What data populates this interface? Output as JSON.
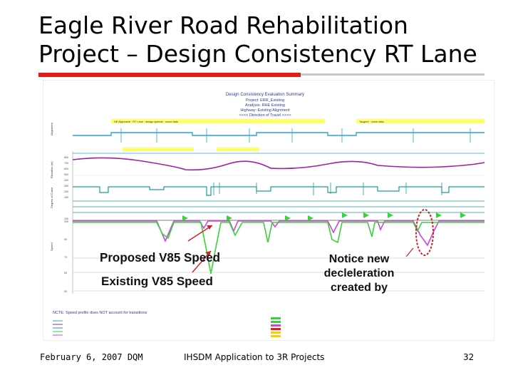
{
  "slide": {
    "title": "Eagle River Road Rehabilitation\nProject – Design Consistency RT Lane",
    "footer_left": "February 6, 2007 DQM",
    "footer_center": "IHSDM Application to 3R Projects",
    "page_number": "32"
  },
  "chart_header": {
    "line1": "Design Consistency Evaluation Summary",
    "line2": "Project: ERR_Existing",
    "line3": "Analysis: RHE Existing",
    "line4": "Highway: Existing Alignment",
    "line5": "<<<< Direction of Travel >>>>"
  },
  "annotations": {
    "proposed": "Proposed V85 Speed",
    "existing": "Existing V85 Speed",
    "notice": "Notice new\ndecleleration\ncreated by"
  },
  "notes": {
    "ncte": "NCTE: Speed profile does NOT account for transitions"
  },
  "colors": {
    "title_rule": "#e41b17",
    "elevation": "#a020a0",
    "curvature": "#1a9e9e",
    "proposed_speed": "#cc44dd",
    "existing_speed": "#3ad23a",
    "callout": "#cc2222"
  }
}
